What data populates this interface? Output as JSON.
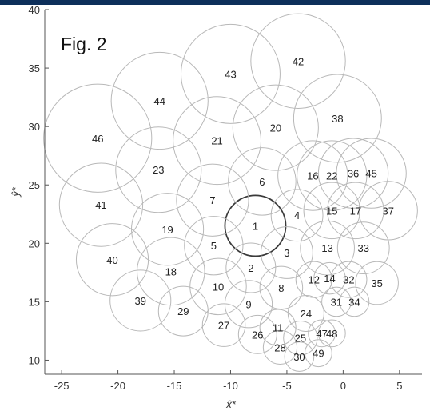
{
  "figure_label": "Fig. 2",
  "highlight_id": "1",
  "axes": {
    "xlabel": "x̂*",
    "ylabel": "ŷ*",
    "xlim": [
      -26.5,
      7
    ],
    "ylim": [
      8.8,
      40
    ],
    "xticks": [
      "-25",
      "-20",
      "-15",
      "-10",
      "-5",
      "0",
      "5"
    ],
    "yticks": [
      "10",
      "15",
      "20",
      "25",
      "30",
      "35",
      "40"
    ]
  },
  "chart_data": {
    "type": "scatter",
    "title": "",
    "xlabel": "x̂*",
    "ylabel": "ŷ*",
    "xlim": [
      -26.5,
      7
    ],
    "ylim": [
      8.8,
      40
    ],
    "grid": false,
    "circles": [
      {
        "id": "1",
        "x": -7.8,
        "y": 21.5,
        "r": 2.7
      },
      {
        "id": "2",
        "x": -8.2,
        "y": 17.9,
        "r": 2.2
      },
      {
        "id": "3",
        "x": -5.0,
        "y": 19.2,
        "r": 2.3
      },
      {
        "id": "4",
        "x": -4.1,
        "y": 22.4,
        "r": 2.3
      },
      {
        "id": "5",
        "x": -11.5,
        "y": 19.8,
        "r": 2.6
      },
      {
        "id": "6",
        "x": -7.2,
        "y": 25.3,
        "r": 3.0
      },
      {
        "id": "7",
        "x": -11.6,
        "y": 23.7,
        "r": 3.2
      },
      {
        "id": "8",
        "x": -5.5,
        "y": 16.2,
        "r": 1.9
      },
      {
        "id": "9",
        "x": -8.4,
        "y": 14.8,
        "r": 2.1
      },
      {
        "id": "10",
        "x": -11.1,
        "y": 16.3,
        "r": 2.5
      },
      {
        "id": "11",
        "x": -5.8,
        "y": 12.8,
        "r": 1.6
      },
      {
        "id": "12",
        "x": -2.6,
        "y": 16.9,
        "r": 1.6
      },
      {
        "id": "13",
        "x": -1.4,
        "y": 19.6,
        "r": 2.4
      },
      {
        "id": "14",
        "x": -1.2,
        "y": 17.0,
        "r": 1.4
      },
      {
        "id": "15",
        "x": -1.0,
        "y": 22.8,
        "r": 2.5
      },
      {
        "id": "16",
        "x": -2.7,
        "y": 25.8,
        "r": 3.1
      },
      {
        "id": "17",
        "x": 1.1,
        "y": 22.8,
        "r": 2.5
      },
      {
        "id": "18",
        "x": -15.3,
        "y": 17.6,
        "r": 3.0
      },
      {
        "id": "19",
        "x": -15.6,
        "y": 21.2,
        "r": 3.2
      },
      {
        "id": "20",
        "x": -6.0,
        "y": 29.9,
        "r": 3.8
      },
      {
        "id": "21",
        "x": -11.2,
        "y": 28.8,
        "r": 3.9
      },
      {
        "id": "22",
        "x": -1.0,
        "y": 25.8,
        "r": 3.1
      },
      {
        "id": "23",
        "x": -16.4,
        "y": 26.3,
        "r": 3.8
      },
      {
        "id": "24",
        "x": -3.3,
        "y": 14.0,
        "r": 1.6
      },
      {
        "id": "25",
        "x": -3.8,
        "y": 11.9,
        "r": 1.5
      },
      {
        "id": "26",
        "x": -7.6,
        "y": 12.2,
        "r": 1.7
      },
      {
        "id": "27",
        "x": -10.6,
        "y": 13.0,
        "r": 1.9
      },
      {
        "id": "28",
        "x": -5.6,
        "y": 11.1,
        "r": 1.5
      },
      {
        "id": "29",
        "x": -14.2,
        "y": 14.2,
        "r": 2.2
      },
      {
        "id": "30",
        "x": -3.9,
        "y": 10.3,
        "r": 1.3
      },
      {
        "id": "31",
        "x": -0.6,
        "y": 15.0,
        "r": 1.3
      },
      {
        "id": "32",
        "x": 0.5,
        "y": 16.9,
        "r": 1.6
      },
      {
        "id": "33",
        "x": 1.8,
        "y": 19.6,
        "r": 2.3
      },
      {
        "id": "34",
        "x": 1.0,
        "y": 15.0,
        "r": 1.3
      },
      {
        "id": "35",
        "x": 3.0,
        "y": 16.6,
        "r": 1.9
      },
      {
        "id": "36",
        "x": 0.9,
        "y": 26.0,
        "r": 3.1
      },
      {
        "id": "37",
        "x": 4.0,
        "y": 22.8,
        "r": 2.6
      },
      {
        "id": "38",
        "x": -0.5,
        "y": 30.7,
        "r": 3.9
      },
      {
        "id": "39",
        "x": -18.0,
        "y": 15.1,
        "r": 2.7
      },
      {
        "id": "40",
        "x": -20.5,
        "y": 18.6,
        "r": 3.2
      },
      {
        "id": "41",
        "x": -21.5,
        "y": 23.3,
        "r": 3.7
      },
      {
        "id": "42",
        "x": -4.0,
        "y": 35.6,
        "r": 4.2
      },
      {
        "id": "43",
        "x": -10.0,
        "y": 34.5,
        "r": 4.4
      },
      {
        "id": "44",
        "x": -16.3,
        "y": 32.2,
        "r": 4.3
      },
      {
        "id": "45",
        "x": 2.5,
        "y": 26.0,
        "r": 3.1
      },
      {
        "id": "46",
        "x": -21.8,
        "y": 29.0,
        "r": 4.8
      },
      {
        "id": "47",
        "x": -1.9,
        "y": 12.3,
        "r": 1.2
      },
      {
        "id": "48",
        "x": -1.0,
        "y": 12.3,
        "r": 1.2
      },
      {
        "id": "49",
        "x": -2.2,
        "y": 10.6,
        "r": 1.2
      }
    ]
  }
}
